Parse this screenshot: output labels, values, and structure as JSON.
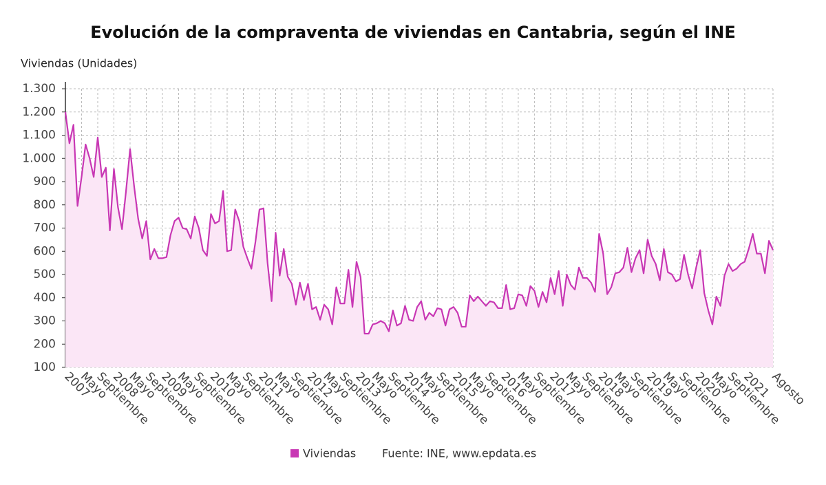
{
  "chart_data": {
    "type": "line",
    "title": "Evolución de la compraventa de viviendas en Cantabria, según el INE",
    "y_label": "Viviendas (Unidades)",
    "source": "Fuente: INE, www.epdata.es",
    "categories": [
      "2007",
      null,
      null,
      null,
      "Mayo",
      null,
      null,
      null,
      "Septiembre",
      null,
      null,
      null,
      "2008",
      null,
      null,
      null,
      "Mayo",
      null,
      null,
      null,
      "Septiembre",
      null,
      null,
      null,
      "2009",
      null,
      null,
      null,
      "Mayo",
      null,
      null,
      null,
      "Septiembre",
      null,
      null,
      null,
      "2010",
      null,
      null,
      null,
      "Mayo",
      null,
      null,
      null,
      "Septiembre",
      null,
      null,
      null,
      "2011",
      null,
      null,
      null,
      "Mayo",
      null,
      null,
      null,
      "Septiembre",
      null,
      null,
      null,
      "2012",
      null,
      null,
      null,
      "Mayo",
      null,
      null,
      null,
      "Septiembre",
      null,
      null,
      null,
      "2013",
      null,
      null,
      null,
      "Mayo",
      null,
      null,
      null,
      "Septiembre",
      null,
      null,
      null,
      "2014",
      null,
      null,
      null,
      "Mayo",
      null,
      null,
      null,
      "Septiembre",
      null,
      null,
      null,
      "2015",
      null,
      null,
      null,
      "Mayo",
      null,
      null,
      null,
      "Septiembre",
      null,
      null,
      null,
      "2016",
      null,
      null,
      null,
      "Mayo",
      null,
      null,
      null,
      "Septiembre",
      null,
      null,
      null,
      "2017",
      null,
      null,
      null,
      "Mayo",
      null,
      null,
      null,
      "Septiembre",
      null,
      null,
      null,
      "2018",
      null,
      null,
      null,
      "Mayo",
      null,
      null,
      null,
      "Septiembre",
      null,
      null,
      null,
      "2019",
      null,
      null,
      null,
      "Mayo",
      null,
      null,
      null,
      "Septiembre",
      null,
      null,
      null,
      "2020",
      null,
      null,
      null,
      "Mayo",
      null,
      null,
      null,
      "Septiembre",
      null,
      null,
      null,
      "2021",
      null,
      null,
      null,
      null,
      null,
      null,
      "Agosto"
    ],
    "series": [
      {
        "name": "Viviendas",
        "color": "#c837b4",
        "area_color": "#fbe6f6",
        "values": [
          1200,
          1065,
          1145,
          795,
          920,
          1060,
          1000,
          920,
          1090,
          920,
          960,
          690,
          955,
          790,
          695,
          860,
          1040,
          880,
          740,
          655,
          730,
          565,
          610,
          570,
          570,
          575,
          670,
          730,
          745,
          700,
          695,
          655,
          750,
          700,
          605,
          580,
          760,
          720,
          730,
          860,
          600,
          605,
          780,
          730,
          620,
          570,
          525,
          640,
          780,
          785,
          550,
          385,
          680,
          495,
          610,
          490,
          460,
          370,
          465,
          390,
          460,
          350,
          360,
          305,
          370,
          350,
          285,
          445,
          375,
          375,
          520,
          360,
          555,
          490,
          245,
          245,
          285,
          290,
          300,
          290,
          255,
          345,
          280,
          290,
          365,
          305,
          300,
          360,
          385,
          305,
          335,
          320,
          355,
          350,
          280,
          350,
          360,
          335,
          275,
          275,
          410,
          385,
          405,
          385,
          365,
          385,
          380,
          355,
          355,
          455,
          350,
          355,
          415,
          410,
          365,
          450,
          430,
          360,
          425,
          380,
          485,
          415,
          515,
          365,
          500,
          455,
          435,
          530,
          485,
          485,
          465,
          425,
          675,
          590,
          415,
          445,
          505,
          510,
          530,
          615,
          510,
          570,
          605,
          505,
          650,
          580,
          545,
          475,
          610,
          510,
          500,
          470,
          480,
          585,
          500,
          440,
          530,
          605,
          420,
          345,
          285,
          405,
          365,
          495,
          545,
          515,
          525,
          545,
          555,
          610,
          675,
          590,
          590,
          505,
          645,
          605
        ]
      }
    ],
    "ylim": [
      100,
      1300
    ],
    "yticks": [
      100,
      200,
      300,
      400,
      500,
      600,
      700,
      800,
      900,
      {
        "value": 1000,
        "label": "1.000"
      },
      {
        "value": 1100,
        "label": "1.100"
      },
      {
        "value": 1200,
        "label": "1.200"
      },
      {
        "value": 1300,
        "label": "1.300"
      }
    ],
    "grid": true
  }
}
